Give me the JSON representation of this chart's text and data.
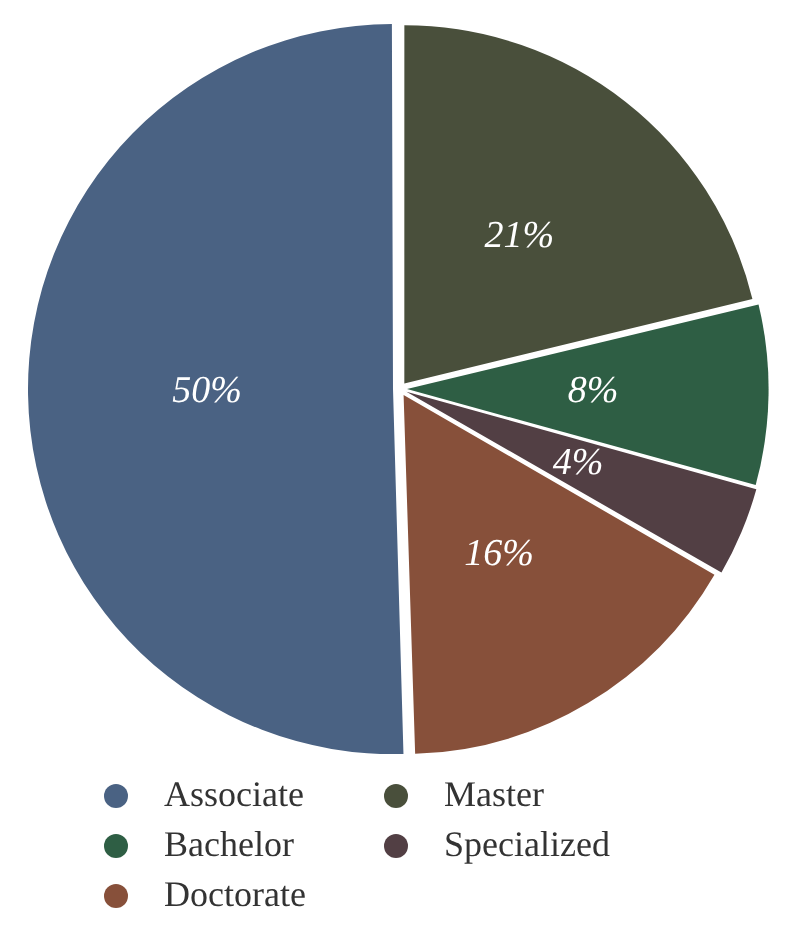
{
  "chart_data": {
    "type": "pie",
    "categories": [
      "Associate",
      "Master",
      "Bachelor",
      "Specialized",
      "Doctorate"
    ],
    "values": [
      50,
      21,
      8,
      4,
      16
    ],
    "colors": [
      "#4a6283",
      "#494f3b",
      "#2e5e44",
      "#523f44",
      "#87503a"
    ],
    "value_labels": [
      "50%",
      "21%",
      "8%",
      "4%",
      "16%"
    ],
    "legend": "bottom"
  }
}
